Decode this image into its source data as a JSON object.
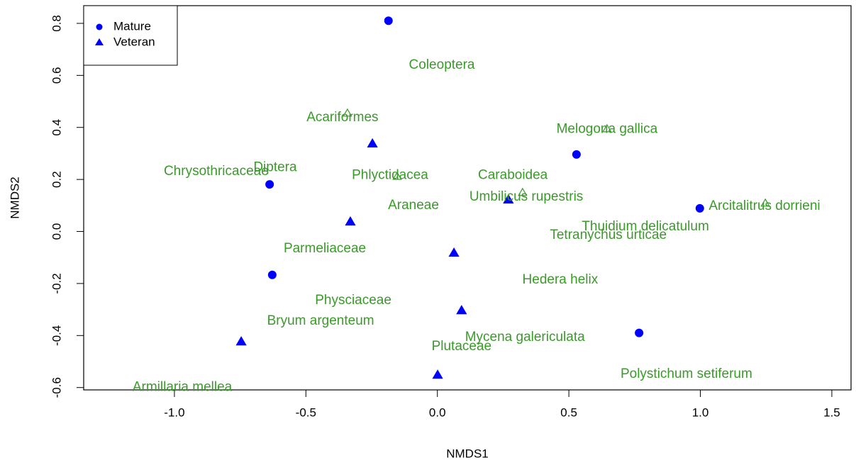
{
  "chart_data": {
    "type": "scatter",
    "xlabel": "NMDS1",
    "ylabel": "NMDS2",
    "xlim": [
      -1.345,
      1.573
    ],
    "ylim": [
      -0.609,
      0.868
    ],
    "xticks": [
      {
        "value": -1.0,
        "label": "-1.0"
      },
      -0.5,
      {
        "value": 0,
        "label": "0.0"
      },
      0.5,
      {
        "value": 1.0,
        "label": "1.0"
      },
      1.5
    ],
    "yticks": [
      -0.6,
      -0.4,
      -0.2,
      {
        "value": 0,
        "label": "0.0"
      },
      0.2,
      0.4,
      0.6,
      0.8
    ],
    "legend": "top-left",
    "series": [
      {
        "name": "Mature",
        "color": "#0000ff",
        "marker": "circle",
        "x": [
          -0.186,
          -0.638,
          0.529,
          0.998,
          -0.628,
          0.767
        ],
        "values": [
          0.81,
          0.181,
          0.296,
          0.089,
          -0.167,
          -0.39
        ]
      },
      {
        "name": "Veteran",
        "color": "#0000ff",
        "marker": "triangle",
        "x": [
          -0.247,
          -0.331,
          0.27,
          0.063,
          0.092,
          -0.746,
          0.001
        ],
        "values": [
          0.337,
          0.037,
          0.122,
          -0.083,
          -0.304,
          -0.424,
          -0.552
        ]
      },
      {
        "color": "#3a9a2a",
        "marker": "open-triangle",
        "x": [
          -0.342,
          0.645,
          -0.153,
          0.324,
          1.247
        ],
        "values": [
          0.454,
          0.394,
          0.211,
          0.149,
          0.108
        ]
      }
    ],
    "labels": [
      {
        "text": "Coleoptera",
        "x": 0.017,
        "y": 0.639
      },
      {
        "text": "Acariformes",
        "x": -0.361,
        "y": 0.438
      },
      {
        "text": "Melogona gallica",
        "x": 0.645,
        "y": 0.392
      },
      {
        "text": "Chrysothricaceae",
        "x": -0.841,
        "y": 0.23
      },
      {
        "text": "Diptera",
        "x": -0.617,
        "y": 0.246
      },
      {
        "text": "Phlyctidacea",
        "x": -0.18,
        "y": 0.216
      },
      {
        "text": "Caraboidea",
        "x": 0.287,
        "y": 0.216
      },
      {
        "text": "Umbilicus rupestris",
        "x": 0.338,
        "y": 0.132
      },
      {
        "text": "Araneae",
        "x": -0.091,
        "y": 0.099
      },
      {
        "text": "Arcitalitrus dorrieni",
        "x": 1.244,
        "y": 0.097
      },
      {
        "text": "Thuidium delicatulum",
        "x": 0.791,
        "y": 0.018
      },
      {
        "text": "Tetranychus urticae",
        "x": 0.65,
        "y": -0.015
      },
      {
        "text": "Parmeliaceae",
        "x": -0.428,
        "y": -0.067
      },
      {
        "text": "Hedera helix",
        "x": 0.467,
        "y": -0.187
      },
      {
        "text": "Physciaceae",
        "x": -0.32,
        "y": -0.266
      },
      {
        "text": "Bryum argenteum",
        "x": -0.444,
        "y": -0.345
      },
      {
        "text": "Mycena galericulata",
        "x": 0.333,
        "y": -0.407
      },
      {
        "text": "Plutaceae",
        "x": 0.092,
        "y": -0.443
      },
      {
        "text": "Polystichum setiferum",
        "x": 0.947,
        "y": -0.549
      },
      {
        "text": "Armillaria mellea",
        "x": -0.97,
        "y": -0.6
      }
    ]
  }
}
